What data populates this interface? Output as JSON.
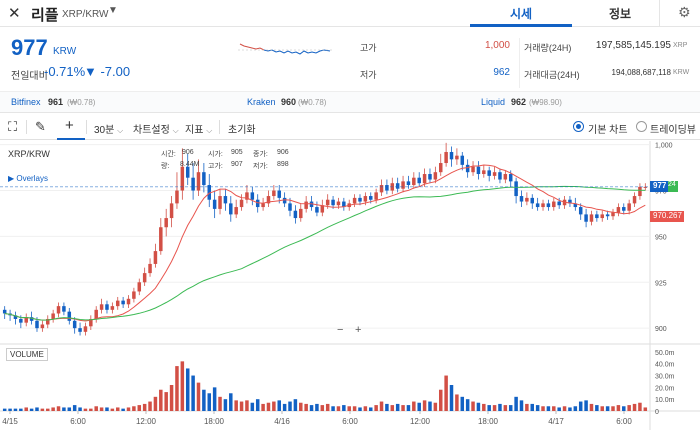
{
  "header": {
    "logo_icon": "xrp-logo-icon",
    "coin_name": "리플",
    "pair": "XRP/KRW",
    "tabs": [
      "시세",
      "정보"
    ],
    "settings_icon": "gear-icon"
  },
  "ticker": {
    "price": "977",
    "unit": "KRW",
    "change_label": "전일대비",
    "change_rate": "-0.71%",
    "change_amount": "▼ -7.00",
    "stats": [
      {
        "label": "고가",
        "value": "1,000",
        "color": "#d24f45"
      },
      {
        "label": "저가",
        "value": "962",
        "color": "#1261c4"
      },
      {
        "label": "거래량(24H)",
        "value": "197,585,145.195",
        "unit": "XRP"
      },
      {
        "label": "거래대금(24H)",
        "value": "194,088,687,118",
        "unit": "KRW"
      }
    ]
  },
  "exchanges": [
    {
      "name": "Bitfinex",
      "price": "961",
      "krw": "(₩0.78)"
    },
    {
      "name": "Kraken",
      "price": "960",
      "krw": "(₩0.78)"
    },
    {
      "name": "Liquid",
      "price": "962",
      "krw": "(₩98.90)"
    }
  ],
  "toolbar": {
    "fullscreen_icon": "fullscreen-icon",
    "draw_icon": "pencil-icon",
    "crosshair_icon": "crosshair-icon",
    "interval": "30분",
    "chart_settings": "차트설정",
    "indicators": "지표",
    "reset": "초기화",
    "chart_types": [
      "기본 차트",
      "트레이딩뷰"
    ],
    "active_chart_type": "기본 차트"
  },
  "chart": {
    "symbol": "XRP/KRW",
    "overlays_label": "▶ Overlays",
    "ohlc_labels": [
      "시가:",
      "고가:",
      "저가:"
    ],
    "ohlc_top": [
      "906",
      "905",
      "906"
    ],
    "ohlc_bottom_vol": "8.44M",
    "ohlc_bottom": [
      "907",
      "898"
    ],
    "ohlc_prefix_top": "시간:",
    "ohlc_prefix_vol": "량:",
    "ohlc_names_top": [
      "시가:",
      "종가:"
    ],
    "ohlc_names_bottom": [
      "고가:",
      "저가:"
    ],
    "volume_label": "VOLUME",
    "zoom_minus": "−",
    "zoom_plus": "+",
    "last_price_tag": "977",
    "last_price_tag_suffix": "24",
    "ma_tag": "970.267",
    "colors": {
      "up": "#d24f45",
      "down": "#1261c4",
      "ma_fast": "#e8554e",
      "ma_slow": "#3cba54",
      "grid": "#f0f0f0"
    }
  },
  "chart_data": {
    "type": "candlestick",
    "price_axis": {
      "ticks": [
        "1,000",
        "975",
        "950",
        "925",
        "900"
      ],
      "ylim": [
        893,
        1002
      ]
    },
    "volume_axis": {
      "ticks": [
        "50.0m",
        "40.0m",
        "30.0m",
        "20.0m",
        "10.0m",
        "0"
      ],
      "ylim": [
        0,
        55
      ]
    },
    "x_ticks": [
      "4/15",
      "6:00",
      "12:00",
      "18:00",
      "4/16",
      "6:00",
      "12:00",
      "18:00",
      "4/17",
      "6:00"
    ],
    "candles": [
      [
        910,
        908,
        912,
        905,
        2
      ],
      [
        908,
        907,
        910,
        904,
        2
      ],
      [
        907,
        905,
        909,
        902,
        2
      ],
      [
        905,
        903,
        907,
        900,
        2
      ],
      [
        903,
        906,
        908,
        901,
        3
      ],
      [
        906,
        904,
        909,
        902,
        2
      ],
      [
        904,
        900,
        906,
        898,
        3
      ],
      [
        900,
        902,
        904,
        898,
        2
      ],
      [
        902,
        905,
        907,
        900,
        2
      ],
      [
        905,
        908,
        910,
        903,
        3
      ],
      [
        908,
        912,
        914,
        906,
        4
      ],
      [
        912,
        909,
        914,
        907,
        3
      ],
      [
        909,
        904,
        911,
        902,
        3
      ],
      [
        904,
        900,
        906,
        897,
        5
      ],
      [
        900,
        898,
        903,
        896,
        3
      ],
      [
        898,
        901,
        903,
        896,
        2
      ],
      [
        901,
        905,
        907,
        899,
        2
      ],
      [
        905,
        910,
        912,
        903,
        4
      ],
      [
        910,
        913,
        916,
        908,
        3
      ],
      [
        913,
        910,
        915,
        908,
        3
      ],
      [
        910,
        912,
        914,
        908,
        2
      ],
      [
        912,
        915,
        917,
        910,
        3
      ],
      [
        915,
        913,
        917,
        911,
        2
      ],
      [
        913,
        916,
        918,
        911,
        3
      ],
      [
        916,
        920,
        922,
        914,
        4
      ],
      [
        920,
        925,
        927,
        918,
        5
      ],
      [
        925,
        930,
        933,
        923,
        6
      ],
      [
        930,
        935,
        938,
        928,
        8
      ],
      [
        935,
        942,
        946,
        933,
        12
      ],
      [
        942,
        955,
        960,
        940,
        18
      ],
      [
        955,
        960,
        965,
        950,
        16
      ],
      [
        960,
        968,
        972,
        955,
        22
      ],
      [
        968,
        975,
        985,
        965,
        38
      ],
      [
        975,
        988,
        998,
        970,
        42
      ],
      [
        988,
        982,
        995,
        978,
        36
      ],
      [
        982,
        975,
        990,
        970,
        30
      ],
      [
        975,
        985,
        992,
        972,
        24
      ],
      [
        985,
        978,
        990,
        974,
        18
      ],
      [
        978,
        970,
        984,
        966,
        15
      ],
      [
        970,
        965,
        975,
        960,
        20
      ],
      [
        965,
        972,
        976,
        962,
        12
      ],
      [
        972,
        968,
        976,
        964,
        10
      ],
      [
        968,
        962,
        972,
        958,
        15
      ],
      [
        962,
        966,
        970,
        960,
        9
      ],
      [
        966,
        970,
        973,
        964,
        8
      ],
      [
        970,
        974,
        978,
        968,
        9
      ],
      [
        974,
        970,
        977,
        967,
        7
      ],
      [
        970,
        966,
        973,
        963,
        10
      ],
      [
        966,
        968,
        971,
        964,
        6
      ],
      [
        968,
        972,
        975,
        966,
        7
      ],
      [
        972,
        975,
        978,
        970,
        8
      ],
      [
        975,
        971,
        978,
        968,
        9
      ],
      [
        971,
        968,
        974,
        966,
        6
      ],
      [
        968,
        964,
        971,
        961,
        8
      ],
      [
        964,
        960,
        967,
        957,
        10
      ],
      [
        960,
        965,
        968,
        958,
        7
      ],
      [
        965,
        969,
        972,
        963,
        6
      ],
      [
        969,
        966,
        972,
        964,
        5
      ],
      [
        966,
        963,
        969,
        961,
        6
      ],
      [
        963,
        967,
        970,
        961,
        5
      ],
      [
        967,
        970,
        973,
        965,
        6
      ],
      [
        970,
        967,
        972,
        965,
        4
      ],
      [
        967,
        969,
        971,
        965,
        4
      ],
      [
        969,
        966,
        971,
        964,
        5
      ],
      [
        966,
        968,
        970,
        964,
        4
      ],
      [
        968,
        971,
        973,
        966,
        4
      ],
      [
        971,
        969,
        973,
        967,
        3
      ],
      [
        969,
        972,
        974,
        967,
        4
      ],
      [
        972,
        970,
        974,
        968,
        3
      ],
      [
        970,
        974,
        976,
        968,
        5
      ],
      [
        974,
        978,
        981,
        972,
        8
      ],
      [
        978,
        975,
        981,
        973,
        6
      ],
      [
        975,
        979,
        982,
        973,
        5
      ],
      [
        979,
        976,
        982,
        974,
        6
      ],
      [
        976,
        980,
        983,
        974,
        5
      ],
      [
        980,
        978,
        983,
        976,
        5
      ],
      [
        978,
        982,
        985,
        976,
        8
      ],
      [
        982,
        979,
        985,
        977,
        7
      ],
      [
        979,
        984,
        987,
        977,
        9
      ],
      [
        984,
        981,
        987,
        979,
        8
      ],
      [
        981,
        985,
        988,
        979,
        7
      ],
      [
        985,
        990,
        995,
        983,
        18
      ],
      [
        990,
        996,
        1001,
        988,
        30
      ],
      [
        996,
        992,
        999,
        988,
        22
      ],
      [
        992,
        994,
        998,
        989,
        14
      ],
      [
        994,
        989,
        996,
        986,
        12
      ],
      [
        989,
        985,
        992,
        982,
        10
      ],
      [
        985,
        988,
        991,
        983,
        8
      ],
      [
        988,
        984,
        991,
        981,
        7
      ],
      [
        984,
        986,
        989,
        982,
        6
      ],
      [
        986,
        983,
        988,
        980,
        5
      ],
      [
        983,
        985,
        988,
        981,
        5
      ],
      [
        985,
        981,
        987,
        979,
        6
      ],
      [
        981,
        984,
        986,
        979,
        5
      ],
      [
        984,
        980,
        986,
        977,
        5
      ],
      [
        980,
        972,
        982,
        968,
        12
      ],
      [
        972,
        969,
        975,
        966,
        9
      ],
      [
        969,
        971,
        974,
        967,
        6
      ],
      [
        971,
        968,
        973,
        965,
        6
      ],
      [
        968,
        966,
        971,
        964,
        5
      ],
      [
        966,
        968,
        970,
        964,
        4
      ],
      [
        968,
        966,
        970,
        964,
        4
      ],
      [
        966,
        969,
        971,
        964,
        4
      ],
      [
        969,
        967,
        971,
        965,
        3
      ],
      [
        967,
        970,
        972,
        965,
        4
      ],
      [
        970,
        968,
        972,
        966,
        3
      ],
      [
        968,
        966,
        971,
        964,
        4
      ],
      [
        966,
        962,
        968,
        959,
        8
      ],
      [
        962,
        958,
        965,
        955,
        9
      ],
      [
        958,
        962,
        964,
        956,
        6
      ],
      [
        962,
        960,
        964,
        958,
        5
      ],
      [
        960,
        962,
        964,
        958,
        4
      ],
      [
        962,
        961,
        964,
        959,
        4
      ],
      [
        961,
        963,
        965,
        959,
        4
      ],
      [
        963,
        966,
        968,
        961,
        5
      ],
      [
        966,
        964,
        968,
        962,
        4
      ],
      [
        964,
        968,
        970,
        962,
        5
      ],
      [
        968,
        972,
        974,
        966,
        6
      ],
      [
        972,
        977,
        979,
        970,
        7
      ],
      [
        977,
        977,
        979,
        975,
        3
      ]
    ],
    "ma_fast_color": "#e8554e",
    "ma_slow_color": "#3cba54"
  }
}
